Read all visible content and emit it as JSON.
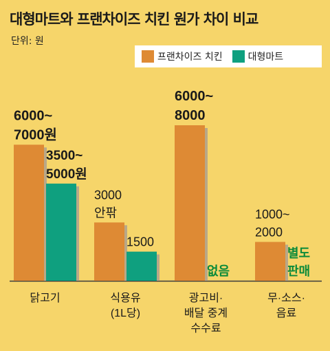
{
  "title": "대형마트와 프랜차이즈 치킨 원가 차이 비교",
  "unit": "단위: 원",
  "colors": {
    "franchise": "#de8a34",
    "mart": "#0fa07f",
    "background": "#f6d56a",
    "shadow": "#b9a888",
    "noteGreen": "#0a8a3a"
  },
  "chart_data": {
    "type": "bar",
    "categories": [
      [
        "닭고기"
      ],
      [
        "식용유",
        "(1L당)"
      ],
      [
        "광고비·",
        "배달 중계",
        "수수료"
      ],
      [
        "무·소스·",
        "음료"
      ]
    ],
    "series": [
      {
        "name": "프랜차이즈 치킨",
        "values": [
          7000,
          3000,
          8000,
          2000
        ],
        "labels": [
          [
            "6000~",
            "7000원"
          ],
          [
            "3000",
            "안팎"
          ],
          [
            "6000~",
            "8000"
          ],
          [
            "1000~",
            "2000"
          ]
        ]
      },
      {
        "name": "대형마트",
        "values": [
          5000,
          1500,
          0,
          0
        ],
        "labels": [
          [
            "3500~",
            "5000원"
          ],
          [
            "1500"
          ],
          [
            "없음"
          ],
          [
            "별도",
            "판매"
          ]
        ]
      }
    ],
    "ylim": [
      0,
      8000
    ],
    "legend_position": "top-right"
  }
}
